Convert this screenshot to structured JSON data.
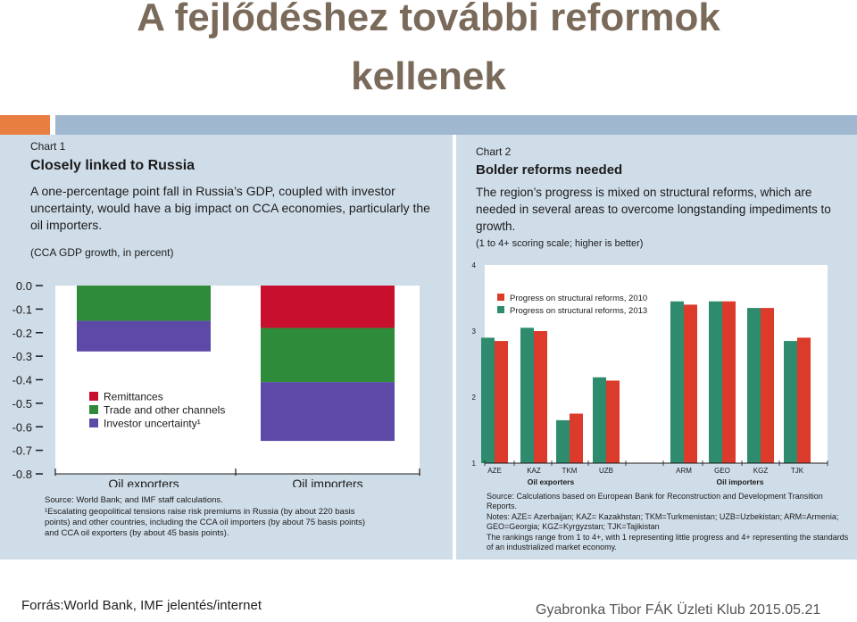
{
  "slide": {
    "title_line1": "A fejlődéshez további reformok",
    "title_line2": "kellenek",
    "source_footer": "Forrás:World Bank, IMF jelentés/internet",
    "credit_footer": "Gyabronka Tibor FÁK Üzleti Klub  2015.05.21",
    "colors": {
      "title": "#7a6a5a",
      "accent_orange": "#e87e3f",
      "accent_blue": "#9fb8d0",
      "panel_bg": "#cfdde9"
    }
  },
  "chart1": {
    "label": "Chart 1",
    "title": "Closely linked to Russia",
    "description": "A one-percentage point fall in Russia’s GDP, coupled with investor uncertainty, would have a big impact on CCA economies, particularly the oil importers.",
    "unit_note": "(CCA GDP growth, in percent)",
    "notes": [
      "Source: World Bank; and IMF staff calculations.",
      "¹Escalating geopolitical tensions raise risk premiums in Russia (by about 220 basis points) and other countries, including the CCA oil importers (by about 75 basis points) and CCA oil exporters (by about 45 basis points)."
    ]
  },
  "chart2": {
    "label": "Chart 2",
    "title": "Bolder reforms needed",
    "description": "The region’s progress is mixed on structural reforms, which are needed in several areas to overcome longstanding impediments to growth.",
    "unit_note": "(1 to 4+ scoring scale; higher is better)",
    "notes": [
      "Source: Calculations based on European Bank for Reconstruction and Development Transition Reports.",
      "Notes: AZE= Azerbaijan; KAZ= Kazakhstan; TKM=Turkmenistan; UZB=Uzbekistan; ARM=Armenia;",
      "GEO=Georgia; KGZ=Kyrgyzstan; TJK=Tajikistan",
      "The rankings range from 1 to 4+, with 1 representing little progress and 4+ representing the standards",
      "of an industrialized market economy."
    ]
  },
  "chart_data": [
    {
      "type": "bar",
      "stacked": true,
      "categories": [
        "Oil exporters",
        "Oil importers"
      ],
      "series": [
        {
          "name": "Remittances",
          "color": "#c8102e",
          "values": [
            0.0,
            -0.18
          ]
        },
        {
          "name": "Trade and other channels",
          "color": "#2e8b3a",
          "values": [
            -0.15,
            -0.23
          ]
        },
        {
          "name": "Investor uncertainty¹",
          "color": "#5d4aa8",
          "values": [
            -0.13,
            -0.25
          ]
        }
      ],
      "ylim": [
        -0.8,
        0.0
      ],
      "yticks": [
        "0.0",
        "-0.1",
        "-0.2",
        "-0.3",
        "-0.4",
        "-0.5",
        "-0.6",
        "-0.7",
        "-0.8"
      ],
      "legend_position": "inside-bottom-center",
      "grid": false
    },
    {
      "type": "bar",
      "categories": [
        "AZE",
        "KAZ",
        "TKM",
        "UZB",
        "ARM",
        "GEO",
        "KGZ",
        "TJK"
      ],
      "groups": [
        {
          "name": "Oil exporters",
          "categories": [
            "AZE",
            "KAZ",
            "TKM",
            "UZB"
          ]
        },
        {
          "name": "Oil importers",
          "categories": [
            "ARM",
            "GEO",
            "KGZ",
            "TJK"
          ]
        }
      ],
      "series": [
        {
          "name": "Progress on structural reforms, 2013",
          "color": "#2e8b6e",
          "values": [
            2.9,
            3.05,
            1.65,
            2.3,
            3.45,
            3.45,
            3.35,
            2.85
          ]
        },
        {
          "name": "Progress on structural reforms, 2010",
          "color": "#dc3a2a",
          "values": [
            2.85,
            3.0,
            1.75,
            2.25,
            3.4,
            3.45,
            3.35,
            2.9
          ]
        }
      ],
      "legend_order": [
        "Progress on structural reforms, 2010",
        "Progress on structural reforms, 2013"
      ],
      "ylim": [
        1,
        4
      ],
      "yticks": [
        "1",
        "2",
        "3",
        "4"
      ],
      "legend_position": "top-left",
      "grid": false
    }
  ]
}
